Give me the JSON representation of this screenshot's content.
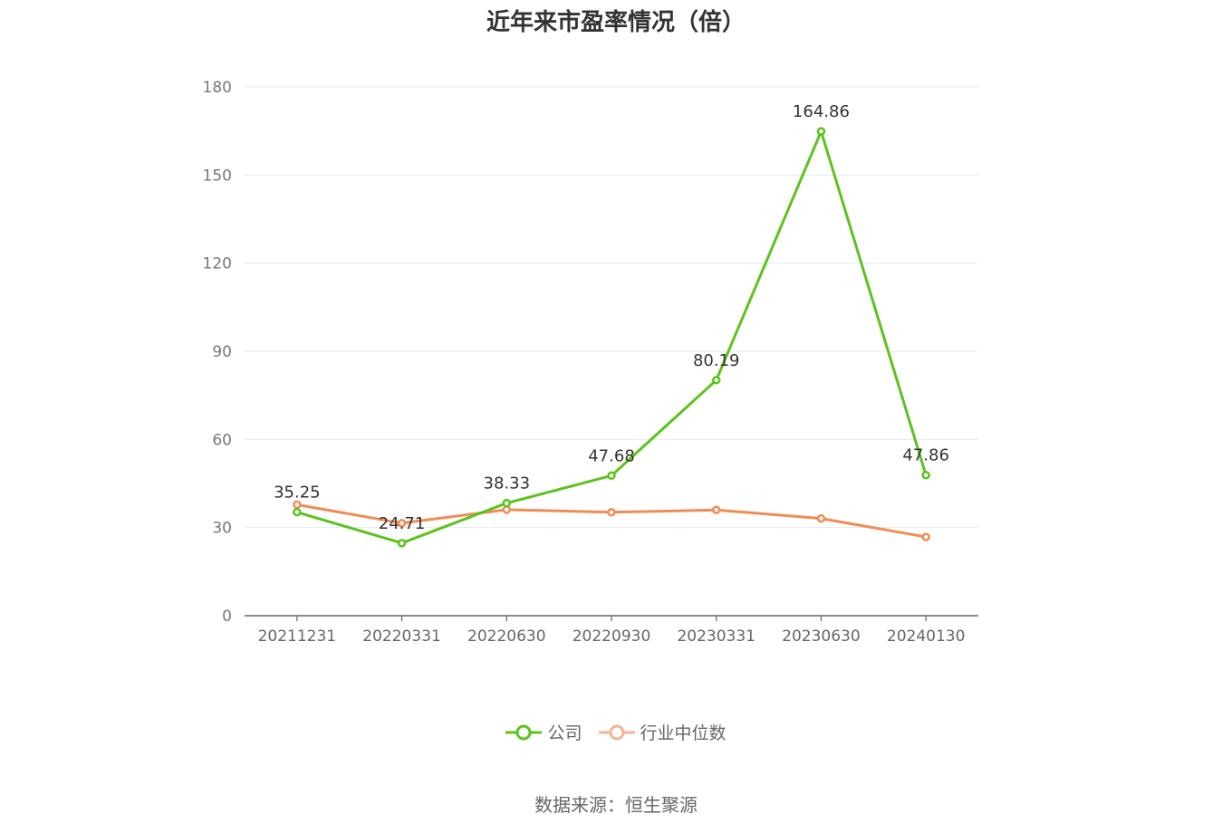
{
  "chart_data": {
    "type": "line",
    "title": "近年来市盈率情况（倍）",
    "categories": [
      "20211231",
      "20220331",
      "20220630",
      "20220930",
      "20230331",
      "20230630",
      "20240130"
    ],
    "series": [
      {
        "name": "公司",
        "values": [
          35.25,
          24.71,
          38.33,
          47.68,
          80.19,
          164.86,
          47.86
        ],
        "labels": [
          "35.25",
          "24.71",
          "38.33",
          "47.68",
          "80.19",
          "164.86",
          "47.86"
        ],
        "color": "#5cc31e"
      },
      {
        "name": "行业中位数",
        "values": [
          37.8,
          31.5,
          36.1,
          35.2,
          36.0,
          33.1,
          26.8
        ],
        "color": "#f08c55"
      }
    ],
    "ylim": [
      0,
      180
    ],
    "yticks": [
      "0",
      "30",
      "60",
      "90",
      "120",
      "150",
      "180"
    ],
    "grid": true,
    "legend": "bottom-center",
    "xlabel": "",
    "ylabel": ""
  },
  "source": "数据来源：恒生聚源"
}
